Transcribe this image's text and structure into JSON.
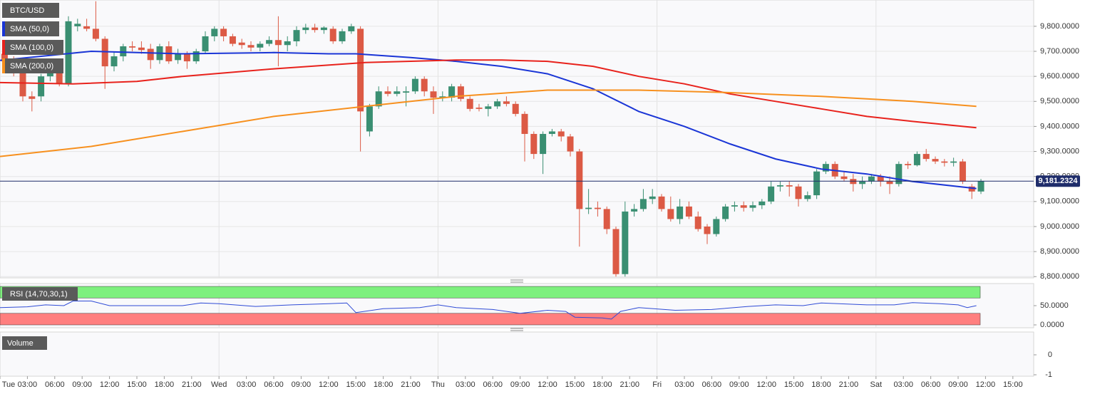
{
  "chart_data": {
    "type": "candlestick",
    "symbol": "BTC/USD",
    "up_color": "#3a8f72",
    "down_color": "#dc5a45",
    "grid": true,
    "xlim": [
      0,
      113.28
    ],
    "xticks": [
      {
        "value": 0,
        "label": "Tue"
      },
      {
        "value": 3,
        "label": "03:00"
      },
      {
        "value": 6,
        "label": "06:00"
      },
      {
        "value": 9,
        "label": "09:00"
      },
      {
        "value": 12,
        "label": "12:00"
      },
      {
        "value": 15,
        "label": "15:00"
      },
      {
        "value": 18,
        "label": "18:00"
      },
      {
        "value": 21,
        "label": "21:00"
      },
      {
        "value": 24,
        "label": "Wed"
      },
      {
        "value": 27,
        "label": "03:00"
      },
      {
        "value": 30,
        "label": "06:00"
      },
      {
        "value": 33,
        "label": "09:00"
      },
      {
        "value": 36,
        "label": "12:00"
      },
      {
        "value": 39,
        "label": "15:00"
      },
      {
        "value": 42,
        "label": "18:00"
      },
      {
        "value": 45,
        "label": "21:00"
      },
      {
        "value": 48,
        "label": "Thu"
      },
      {
        "value": 51,
        "label": "03:00"
      },
      {
        "value": 54,
        "label": "06:00"
      },
      {
        "value": 57,
        "label": "09:00"
      },
      {
        "value": 60,
        "label": "12:00"
      },
      {
        "value": 63,
        "label": "15:00"
      },
      {
        "value": 66,
        "label": "18:00"
      },
      {
        "value": 69,
        "label": "21:00"
      },
      {
        "value": 72,
        "label": "Fri"
      },
      {
        "value": 75,
        "label": "03:00"
      },
      {
        "value": 78,
        "label": "06:00"
      },
      {
        "value": 81,
        "label": "09:00"
      },
      {
        "value": 84,
        "label": "12:00"
      },
      {
        "value": 87,
        "label": "15:00"
      },
      {
        "value": 90,
        "label": "18:00"
      },
      {
        "value": 93,
        "label": "21:00"
      },
      {
        "value": 96,
        "label": "Sat"
      },
      {
        "value": 99,
        "label": "03:00"
      },
      {
        "value": 102,
        "label": "06:00"
      },
      {
        "value": 105,
        "label": "09:00"
      },
      {
        "value": 108,
        "label": "12:00"
      },
      {
        "value": 111,
        "label": "15:00"
      }
    ],
    "ylim": [
      8795,
      9905
    ],
    "yticks": [
      {
        "value": 8800,
        "label": "8,800.0000"
      },
      {
        "value": 8900,
        "label": "8,900.0000"
      },
      {
        "value": 9000,
        "label": "9,000.0000"
      },
      {
        "value": 9100,
        "label": "9,100.0000"
      },
      {
        "value": 9200,
        "label": "9,200.0000"
      },
      {
        "value": 9300,
        "label": "9,300.0000"
      },
      {
        "value": 9400,
        "label": "9,400.0000"
      },
      {
        "value": 9500,
        "label": "9,500.0000"
      },
      {
        "value": 9600,
        "label": "9,600.0000"
      },
      {
        "value": 9700,
        "label": "9,700.0000"
      },
      {
        "value": 9800,
        "label": "9,800.0000"
      }
    ],
    "x": [
      0,
      1,
      2,
      3,
      4,
      5,
      6,
      7,
      8,
      9,
      10,
      11,
      12,
      13,
      14,
      15,
      16,
      17,
      18,
      19,
      20,
      21,
      22,
      23,
      24,
      25,
      26,
      27,
      28,
      29,
      30,
      31,
      32,
      33,
      34,
      35,
      36,
      37,
      38,
      39,
      40,
      41,
      42,
      43,
      44,
      45,
      46,
      47,
      48,
      49,
      50,
      51,
      52,
      53,
      54,
      55,
      56,
      57,
      58,
      59,
      60,
      61,
      62,
      63,
      64,
      65,
      66,
      67,
      68,
      69,
      70,
      71,
      72,
      73,
      74,
      75,
      76,
      77,
      78,
      79,
      80,
      81,
      82,
      83,
      84,
      85,
      86,
      87,
      88,
      89,
      90,
      91,
      92,
      93,
      94,
      95,
      96,
      97,
      98,
      99,
      100,
      101,
      102,
      103,
      104,
      105,
      106,
      107
    ],
    "ohlc": [
      [
        9690,
        9710,
        9640,
        9660
      ],
      [
        9660,
        9680,
        9600,
        9620
      ],
      [
        9620,
        9640,
        9500,
        9520
      ],
      [
        9520,
        9540,
        9460,
        9510
      ],
      [
        9520,
        9610,
        9500,
        9600
      ],
      [
        9600,
        9640,
        9580,
        9620
      ],
      [
        9620,
        9650,
        9560,
        9570
      ],
      [
        9570,
        9840,
        9560,
        9820
      ],
      [
        9800,
        9830,
        9780,
        9810
      ],
      [
        9800,
        9830,
        9780,
        9790
      ],
      [
        9790,
        9900,
        9740,
        9750
      ],
      [
        9750,
        9760,
        9550,
        9640
      ],
      [
        9640,
        9700,
        9620,
        9680
      ],
      [
        9680,
        9730,
        9660,
        9720
      ],
      [
        9720,
        9740,
        9700,
        9715
      ],
      [
        9715,
        9740,
        9690,
        9705
      ],
      [
        9710,
        9730,
        9630,
        9665
      ],
      [
        9665,
        9730,
        9650,
        9720
      ],
      [
        9720,
        9740,
        9650,
        9660
      ],
      [
        9665,
        9710,
        9650,
        9690
      ],
      [
        9690,
        9700,
        9630,
        9660
      ],
      [
        9660,
        9710,
        9650,
        9700
      ],
      [
        9700,
        9780,
        9690,
        9760
      ],
      [
        9760,
        9800,
        9740,
        9790
      ],
      [
        9790,
        9800,
        9740,
        9760
      ],
      [
        9760,
        9770,
        9720,
        9730
      ],
      [
        9735,
        9750,
        9710,
        9725
      ],
      [
        9725,
        9740,
        9700,
        9715
      ],
      [
        9715,
        9740,
        9700,
        9730
      ],
      [
        9730,
        9760,
        9720,
        9745
      ],
      [
        9745,
        9840,
        9640,
        9725
      ],
      [
        9725,
        9760,
        9700,
        9740
      ],
      [
        9740,
        9800,
        9720,
        9785
      ],
      [
        9785,
        9810,
        9770,
        9795
      ],
      [
        9795,
        9810,
        9775,
        9785
      ],
      [
        9785,
        9800,
        9770,
        9795
      ],
      [
        9790,
        9800,
        9730,
        9740
      ],
      [
        9740,
        9790,
        9730,
        9780
      ],
      [
        9780,
        9810,
        9770,
        9800
      ],
      [
        9790,
        9800,
        9300,
        9460
      ],
      [
        9380,
        9490,
        9360,
        9480
      ],
      [
        9480,
        9560,
        9470,
        9540
      ],
      [
        9540,
        9560,
        9520,
        9530
      ],
      [
        9530,
        9560,
        9520,
        9540
      ],
      [
        9535,
        9560,
        9480,
        9540
      ],
      [
        9540,
        9600,
        9530,
        9590
      ],
      [
        9590,
        9600,
        9520,
        9540
      ],
      [
        9540,
        9560,
        9450,
        9515
      ],
      [
        9515,
        9540,
        9500,
        9520
      ],
      [
        9515,
        9570,
        9500,
        9560
      ],
      [
        9560,
        9570,
        9500,
        9510
      ],
      [
        9510,
        9520,
        9460,
        9470
      ],
      [
        9475,
        9490,
        9460,
        9470
      ],
      [
        9470,
        9490,
        9440,
        9480
      ],
      [
        9480,
        9510,
        9470,
        9500
      ],
      [
        9500,
        9520,
        9480,
        9490
      ],
      [
        9490,
        9500,
        9440,
        9450
      ],
      [
        9450,
        9460,
        9260,
        9370
      ],
      [
        9370,
        9380,
        9270,
        9290
      ],
      [
        9290,
        9380,
        9210,
        9370
      ],
      [
        9370,
        9390,
        9360,
        9380
      ],
      [
        9380,
        9390,
        9340,
        9360
      ],
      [
        9360,
        9370,
        9280,
        9300
      ],
      [
        9300,
        9310,
        8920,
        9070
      ],
      [
        9070,
        9150,
        9050,
        9075
      ],
      [
        9075,
        9100,
        9040,
        9070
      ],
      [
        9070,
        9080,
        8970,
        8990
      ],
      [
        8990,
        9000,
        8800,
        8810
      ],
      [
        8810,
        9100,
        8800,
        9060
      ],
      [
        9060,
        9090,
        9040,
        9070
      ],
      [
        9070,
        9150,
        9060,
        9110
      ],
      [
        9110,
        9150,
        9090,
        9120
      ],
      [
        9120,
        9130,
        9060,
        9070
      ],
      [
        9070,
        9120,
        9020,
        9030
      ],
      [
        9030,
        9110,
        9010,
        9080
      ],
      [
        9080,
        9100,
        9030,
        9040
      ],
      [
        9040,
        9060,
        8980,
        8990
      ],
      [
        9000,
        9010,
        8930,
        8970
      ],
      [
        8970,
        9040,
        8960,
        9030
      ],
      [
        9030,
        9090,
        9020,
        9080
      ],
      [
        9080,
        9100,
        9060,
        9085
      ],
      [
        9085,
        9100,
        9060,
        9075
      ],
      [
        9075,
        9100,
        9060,
        9085
      ],
      [
        9085,
        9110,
        9070,
        9100
      ],
      [
        9100,
        9180,
        9090,
        9160
      ],
      [
        9160,
        9180,
        9140,
        9165
      ],
      [
        9165,
        9180,
        9120,
        9160
      ],
      [
        9160,
        9170,
        9080,
        9110
      ],
      [
        9110,
        9140,
        9100,
        9125
      ],
      [
        9125,
        9230,
        9110,
        9220
      ],
      [
        9220,
        9260,
        9210,
        9250
      ],
      [
        9250,
        9260,
        9190,
        9200
      ],
      [
        9200,
        9220,
        9180,
        9190
      ],
      [
        9190,
        9210,
        9140,
        9170
      ],
      [
        9170,
        9200,
        9150,
        9180
      ],
      [
        9180,
        9210,
        9170,
        9200
      ],
      [
        9200,
        9210,
        9160,
        9180
      ],
      [
        9180,
        9200,
        9130,
        9170
      ],
      [
        9170,
        9260,
        9160,
        9250
      ],
      [
        9250,
        9260,
        9230,
        9245
      ],
      [
        9245,
        9300,
        9240,
        9290
      ],
      [
        9290,
        9310,
        9260,
        9270
      ],
      [
        9270,
        9280,
        9250,
        9260
      ],
      [
        9260,
        9270,
        9240,
        9255
      ],
      [
        9255,
        9275,
        9240,
        9260
      ],
      [
        9260,
        9270,
        9170,
        9180
      ],
      [
        9160,
        9170,
        9110,
        9140
      ],
      [
        9140,
        9190,
        9130,
        9181.2324
      ]
    ],
    "price_line": {
      "value": 9181.2324,
      "label": "9,181.2324",
      "color": "#1f2d6b"
    },
    "series": [
      {
        "name": "SMA (50,0)",
        "color": "#1a35d6",
        "x": [
          0,
          10,
          20,
          30,
          36,
          39,
          45,
          50,
          55,
          60,
          65,
          70,
          75,
          80,
          85,
          90,
          95,
          100,
          107
        ],
        "values": [
          9664,
          9700,
          9690,
          9695,
          9690,
          9690,
          9675,
          9660,
          9640,
          9610,
          9550,
          9460,
          9400,
          9330,
          9270,
          9230,
          9210,
          9180,
          9152
        ]
      },
      {
        "name": "SMA (100,0)",
        "color": "#e8221c",
        "x": [
          0,
          8,
          15,
          20,
          30,
          40,
          50,
          55,
          60,
          65,
          70,
          75,
          80,
          85,
          90,
          95,
          100,
          107
        ],
        "values": [
          9575,
          9570,
          9580,
          9600,
          9630,
          9655,
          9665,
          9665,
          9660,
          9640,
          9600,
          9570,
          9530,
          9500,
          9470,
          9440,
          9420,
          9395
        ]
      },
      {
        "name": "SMA (200,0)",
        "color": "#f7901e",
        "x": [
          0,
          10,
          20,
          30,
          40,
          50,
          60,
          70,
          80,
          90,
          100,
          107
        ],
        "values": [
          9280,
          9320,
          9380,
          9440,
          9480,
          9520,
          9545,
          9545,
          9535,
          9520,
          9500,
          9480
        ]
      }
    ],
    "rsi": {
      "name": "RSI (14,70,30,1)",
      "color": "#2f4bd6",
      "upper_band": 70,
      "lower_band": 30,
      "upper_color": "#7ef07e",
      "lower_color": "#ff7f7f",
      "ylim": [
        0,
        100
      ],
      "yticks": [
        {
          "value": 0,
          "label": "0.0000"
        },
        {
          "value": 50,
          "label": "50.0000"
        }
      ],
      "x": [
        0,
        3,
        5,
        7,
        8,
        10,
        12,
        16,
        20,
        22,
        24,
        28,
        32,
        36,
        38,
        39,
        42,
        46,
        48,
        50,
        54,
        57,
        60,
        62,
        63,
        66,
        67,
        68,
        70,
        74,
        78,
        82,
        85,
        88,
        90,
        95,
        98,
        100,
        103,
        105,
        106,
        107
      ],
      "values": [
        45,
        47,
        52,
        50,
        62,
        62,
        50,
        50,
        50,
        57,
        55,
        48,
        52,
        55,
        57,
        32,
        42,
        45,
        52,
        45,
        40,
        30,
        38,
        35,
        20,
        18,
        15,
        35,
        45,
        38,
        40,
        48,
        52,
        50,
        57,
        52,
        52,
        58,
        55,
        52,
        45,
        50
      ]
    },
    "volume": {
      "name": "Volume",
      "ylim": [
        -1,
        1
      ],
      "yticks": [
        -1,
        0
      ]
    }
  }
}
